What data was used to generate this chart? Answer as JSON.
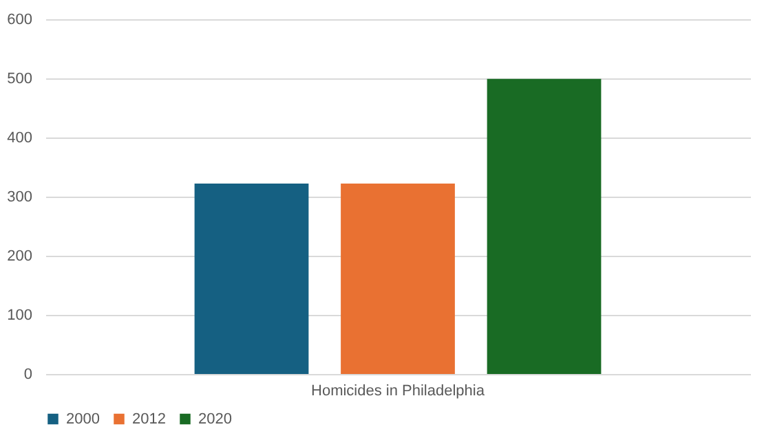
{
  "chart_data": {
    "type": "bar",
    "categories": [
      "Homicides in Philadelphia"
    ],
    "series": [
      {
        "name": "2000",
        "color": "#156082",
        "values": [
          322
        ]
      },
      {
        "name": "2012",
        "color": "#e97132",
        "values": [
          322
        ]
      },
      {
        "name": "2020",
        "color": "#196b24",
        "values": [
          499
        ]
      }
    ],
    "ylim": [
      0,
      600
    ],
    "yticks": [
      0,
      100,
      200,
      300,
      400,
      500,
      600
    ],
    "grid": "y",
    "legend": "bottom"
  }
}
